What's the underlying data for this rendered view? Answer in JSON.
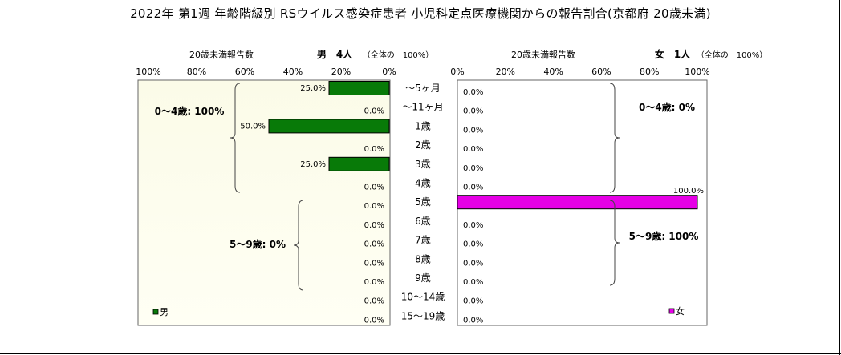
{
  "title": "2022年 第1週 年齢階級別 RSウイルス感染症患者 小児科定点医療機関からの報告割合(京都府 20歳未満)",
  "colors": {
    "male_bar": "#087a08",
    "female_bar": "#e600e6",
    "male_plot_bg_top": "#fbfbe8",
    "male_plot_bg_bottom": "#fffff4",
    "female_plot_bg": "#ffffff"
  },
  "chart_data": [
    {
      "type": "bar",
      "orientation": "horizontal",
      "direction": "right-to-left",
      "side": "male",
      "subtitle_left": "20歳未満報告数",
      "subtitle_right": "男　4人",
      "subtitle_note": "（全体の　100%）",
      "ticks": [
        "100%",
        "80%",
        "60%",
        "40%",
        "20%",
        "0%"
      ],
      "xlim": [
        0,
        100
      ],
      "unit": "%",
      "categories": [
        "〜5ヶ月",
        "〜11ヶ月",
        "1歳",
        "2歳",
        "3歳",
        "4歳",
        "5歳",
        "6歳",
        "7歳",
        "8歳",
        "9歳",
        "10〜14歳",
        "15〜19歳"
      ],
      "values": [
        25.0,
        0.0,
        50.0,
        0.0,
        25.0,
        0.0,
        0.0,
        0.0,
        0.0,
        0.0,
        0.0,
        0.0,
        0.0
      ],
      "value_labels": [
        "25.0%",
        "0.0%",
        "50.0%",
        "0.0%",
        "25.0%",
        "0.0%",
        "0.0%",
        "0.0%",
        "0.0%",
        "0.0%",
        "0.0%",
        "0.0%",
        "0.0%"
      ],
      "legend": "男",
      "legend_position": "bottom-left",
      "annotations": [
        "0〜4歳: 100%",
        "5〜9歳: 0%"
      ]
    },
    {
      "type": "bar",
      "orientation": "horizontal",
      "direction": "left-to-right",
      "side": "female",
      "subtitle_left": "20歳未満報告数",
      "subtitle_right": "女　1人",
      "subtitle_note": "（全体の　100%）",
      "ticks": [
        "0%",
        "20%",
        "40%",
        "60%",
        "80%",
        "100%"
      ],
      "xlim": [
        0,
        100
      ],
      "unit": "%",
      "categories": [
        "〜5ヶ月",
        "〜11ヶ月",
        "1歳",
        "2歳",
        "3歳",
        "4歳",
        "5歳",
        "6歳",
        "7歳",
        "8歳",
        "9歳",
        "10〜14歳",
        "15〜19歳"
      ],
      "values": [
        0.0,
        0.0,
        0.0,
        0.0,
        0.0,
        0.0,
        100.0,
        0.0,
        0.0,
        0.0,
        0.0,
        0.0,
        0.0
      ],
      "value_labels": [
        "0.0%",
        "0.0%",
        "0.0%",
        "0.0%",
        "0.0%",
        "0.0%",
        "100.0%",
        "0.0%",
        "0.0%",
        "0.0%",
        "0.0%",
        "0.0%",
        "0.0%"
      ],
      "legend": "女",
      "legend_position": "bottom-right",
      "annotations": [
        "0〜4歳: 0%",
        "5〜9歳: 100%"
      ]
    }
  ]
}
